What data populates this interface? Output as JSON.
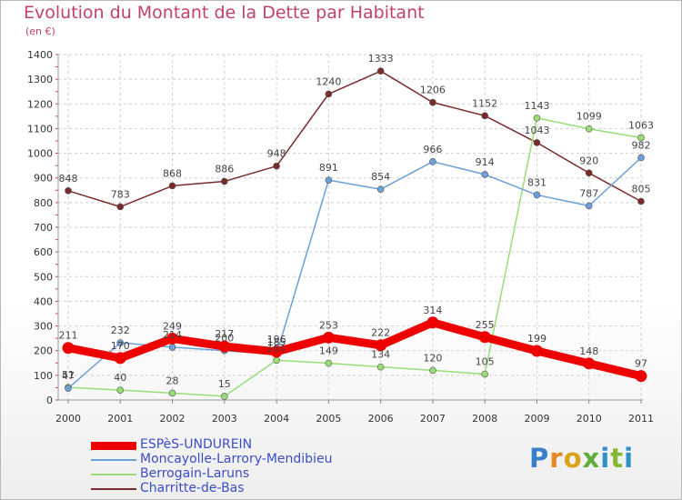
{
  "chart_data": {
    "type": "line",
    "title": "Evolution du Montant de la Dette par Habitant",
    "subtitle": "(en €)",
    "x": [
      "2000",
      "2001",
      "2002",
      "2003",
      "2004",
      "2005",
      "2006",
      "2007",
      "2008",
      "2009",
      "2010",
      "2011"
    ],
    "ylim": [
      0,
      1400
    ],
    "yticks": [
      0,
      100,
      200,
      300,
      400,
      500,
      600,
      700,
      800,
      900,
      1000,
      1100,
      1200,
      1300,
      1400
    ],
    "grid": true,
    "legend": "bottom-left",
    "series": [
      {
        "name": "ESPèS-UNDUREIN",
        "color": "#ee0000",
        "values": [
          211,
          170,
          249,
          217,
          196,
          253,
          222,
          314,
          255,
          199,
          148,
          97
        ]
      },
      {
        "name": "Moncayolle-Larrory-Mendibieu",
        "color": "#6ca0d8",
        "values": [
          47,
          232,
          214,
          200,
          185,
          891,
          854,
          966,
          914,
          831,
          787,
          982
        ]
      },
      {
        "name": "Berrogain-Laruns",
        "color": "#99dd77",
        "values": [
          51,
          40,
          28,
          15,
          161,
          149,
          134,
          120,
          105,
          1143,
          1099,
          1063
        ]
      },
      {
        "name": "Charritte-de-Bas",
        "color": "#7a2a2a",
        "values": [
          848,
          783,
          868,
          886,
          948,
          1240,
          1333,
          1206,
          1152,
          1043,
          920,
          805
        ]
      }
    ]
  },
  "logo": {
    "letters": [
      "P",
      "r",
      "o",
      "x",
      "i",
      "t",
      "i"
    ]
  }
}
